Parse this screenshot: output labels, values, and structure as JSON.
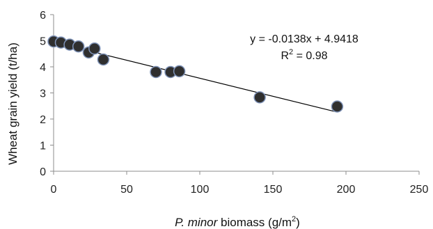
{
  "chart_data": {
    "type": "scatter",
    "title": "",
    "ylabel": "Wheat grain yield (t/ha)",
    "xlabel": {
      "italic": "P. minor",
      "rest": " biomass (g/m",
      "sup": "2",
      "close": ")"
    },
    "xlim": [
      0,
      250
    ],
    "ylim": [
      0,
      6
    ],
    "xticks": [
      0,
      50,
      100,
      150,
      200,
      250
    ],
    "yticks": [
      0,
      1,
      2,
      3,
      4,
      5,
      6
    ],
    "grid": false,
    "points": [
      {
        "x": 0,
        "y": 4.97
      },
      {
        "x": 5,
        "y": 4.93
      },
      {
        "x": 11,
        "y": 4.85
      },
      {
        "x": 17,
        "y": 4.78
      },
      {
        "x": 24,
        "y": 4.55
      },
      {
        "x": 28,
        "y": 4.7
      },
      {
        "x": 34,
        "y": 4.28
      },
      {
        "x": 70,
        "y": 3.8
      },
      {
        "x": 80,
        "y": 3.8
      },
      {
        "x": 86,
        "y": 3.83
      },
      {
        "x": 141,
        "y": 2.83
      },
      {
        "x": 194,
        "y": 2.48
      }
    ],
    "trendline": {
      "slope": -0.0138,
      "intercept": 4.9418,
      "x_range": [
        0,
        194
      ]
    },
    "annotation": {
      "equation": "y = -0.0138x + 4.9418",
      "r2_prefix": "R",
      "r2_sup": "2",
      "r2_rest": " = 0.98"
    },
    "colors": {
      "marker_fill": "#2f2f2f",
      "marker_stroke": "#7f93b8",
      "line": "#000000",
      "axis": "#8c8c8c"
    }
  }
}
